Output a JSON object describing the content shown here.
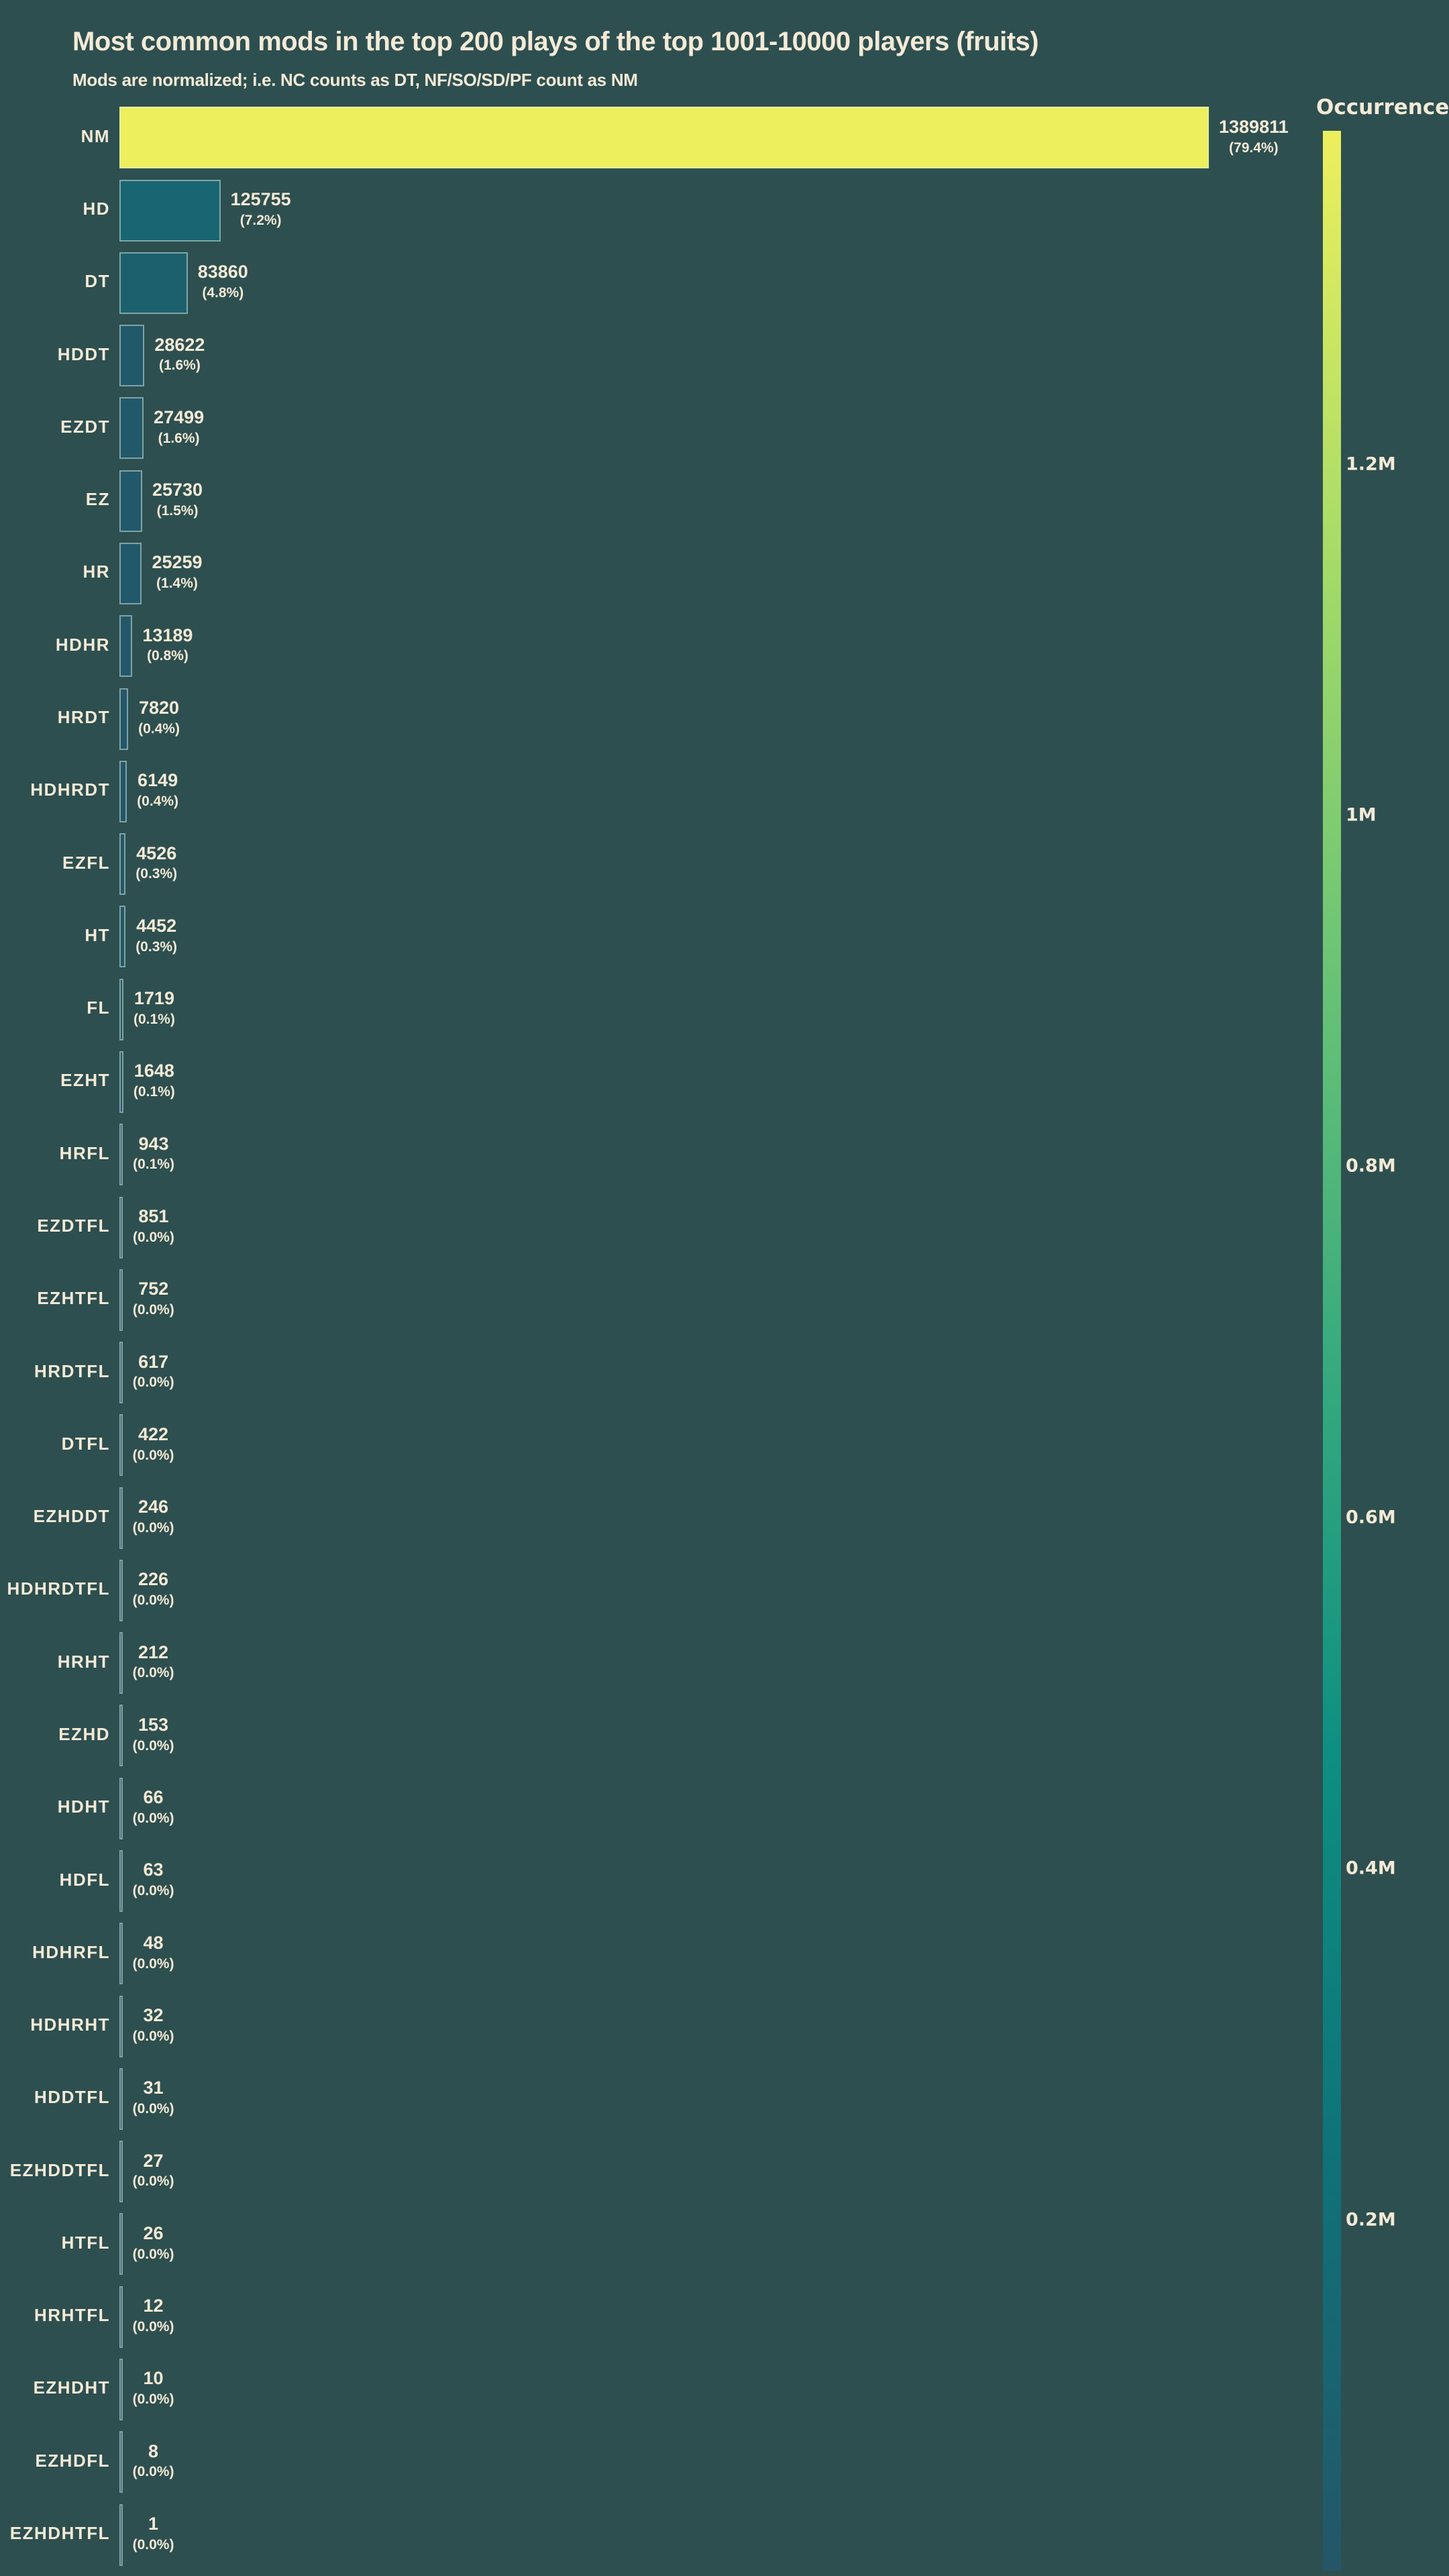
{
  "header": {
    "title": "Most common mods in the top 200 plays of the top 1001-10000 players (fruits)",
    "subtitle": "Mods are normalized; i.e. NC counts as DT, NF/SO/SD/PF count as NM"
  },
  "colors": {
    "background": "#2e4f4f",
    "text": "#f3ead7",
    "bar_edge": "rgba(222,235,226,0.5)"
  },
  "chart_data": {
    "type": "bar",
    "orientation": "horizontal",
    "title": "Most common mods in the top 200 plays of the top 1001-10000 players (fruits)",
    "subtitle": "Mods are normalized; i.e. NC counts as DT, NF/SO/SD/PF count as NM",
    "xlabel": "",
    "ylabel": "",
    "grid": false,
    "legend": false,
    "xlim": [
      0,
      1389811
    ],
    "categories": [
      "NM",
      "HD",
      "DT",
      "HDDT",
      "EZDT",
      "EZ",
      "HR",
      "HDHR",
      "HRDT",
      "HDHRDT",
      "EZFL",
      "HT",
      "FL",
      "EZHT",
      "HRFL",
      "EZDTFL",
      "EZHTFL",
      "HRDTFL",
      "DTFL",
      "EZHDDT",
      "HDHRDTFL",
      "HRHT",
      "EZHD",
      "HDHT",
      "HDFL",
      "HDHRFL",
      "HDHRHT",
      "HDDTFL",
      "EZHDDTFL",
      "HTFL",
      "HRHTFL",
      "EZHDHT",
      "EZHDFL",
      "EZHDHTFL"
    ],
    "values": [
      1389811,
      125755,
      83860,
      28622,
      27499,
      25730,
      25259,
      13189,
      7820,
      6149,
      4526,
      4452,
      1719,
      1648,
      943,
      851,
      752,
      617,
      422,
      246,
      226,
      212,
      153,
      66,
      63,
      48,
      32,
      31,
      27,
      26,
      12,
      10,
      8,
      1
    ],
    "percent_labels": [
      "(79.4%)",
      "(7.2%)",
      "(4.8%)",
      "(1.6%)",
      "(1.6%)",
      "(1.5%)",
      "(1.4%)",
      "(0.8%)",
      "(0.4%)",
      "(0.4%)",
      "(0.3%)",
      "(0.3%)",
      "(0.1%)",
      "(0.1%)",
      "(0.1%)",
      "(0.0%)",
      "(0.0%)",
      "(0.0%)",
      "(0.0%)",
      "(0.0%)",
      "(0.0%)",
      "(0.0%)",
      "(0.0%)",
      "(0.0%)",
      "(0.0%)",
      "(0.0%)",
      "(0.0%)",
      "(0.0%)",
      "(0.0%)",
      "(0.0%)",
      "(0.0%)",
      "(0.0%)",
      "(0.0%)",
      "(0.0%)"
    ],
    "colormap_stops": [
      "#245668",
      "#0f7279",
      "#0d8f81",
      "#39ab7e",
      "#6ec574",
      "#a9dc67",
      "#edef5d"
    ],
    "colorbar": {
      "title": "Occurrences",
      "vmin": 0,
      "vmax": 1389811,
      "ticks": [
        {
          "label": "1.2M",
          "value": 1200000
        },
        {
          "label": "1M",
          "value": 1000000
        },
        {
          "label": "0.8M",
          "value": 800000
        },
        {
          "label": "0.6M",
          "value": 600000
        },
        {
          "label": "0.4M",
          "value": 400000
        },
        {
          "label": "0.2M",
          "value": 200000
        }
      ]
    }
  }
}
